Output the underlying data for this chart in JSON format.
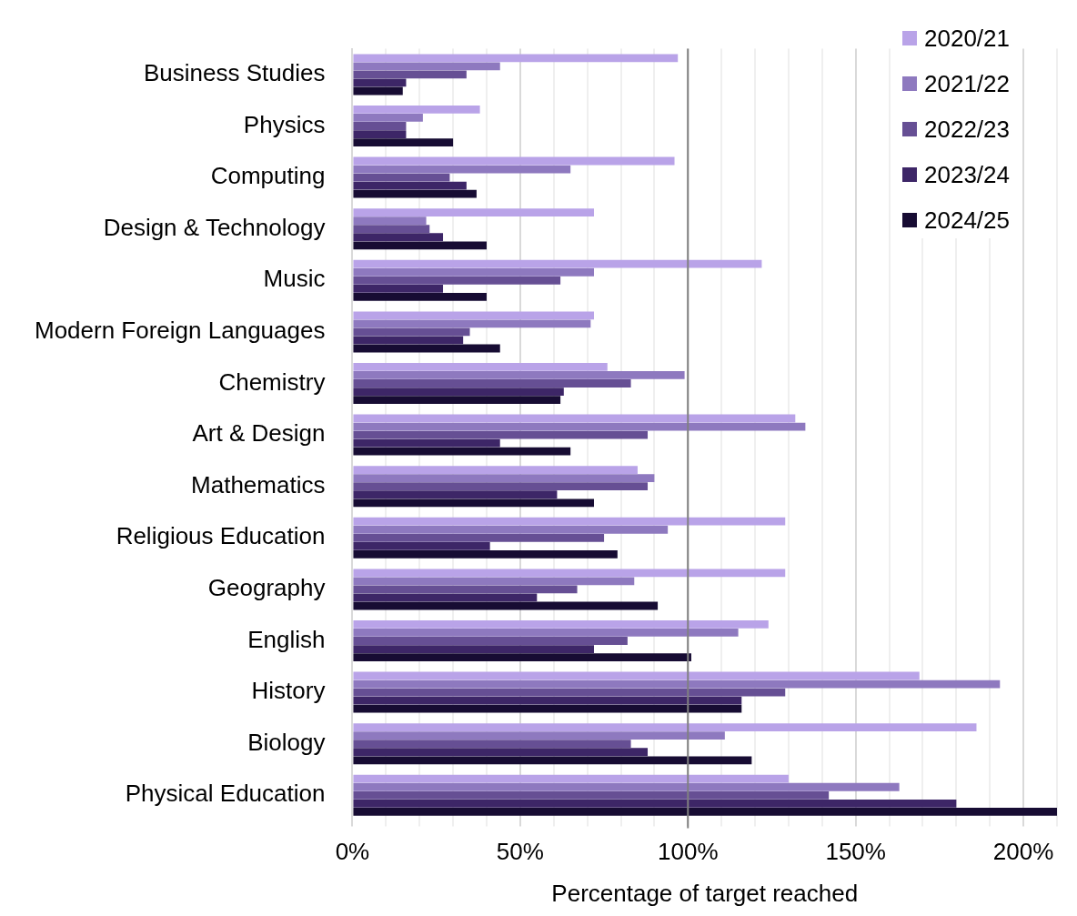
{
  "chart_data": {
    "type": "bar",
    "orientation": "horizontal",
    "xlabel": "Percentage of target reached",
    "categories": [
      "Business Studies",
      "Physics",
      "Computing",
      "Design & Technology",
      "Music",
      "Modern Foreign Languages",
      "Chemistry",
      "Art & Design",
      "Mathematics",
      "Religious Education",
      "Geography",
      "English",
      "History",
      "Biology",
      "Physical Education"
    ],
    "series": [
      {
        "name": "2020/21",
        "color": "#b9a3e8",
        "values": [
          97,
          38,
          96,
          72,
          122,
          72,
          76,
          132,
          85,
          129,
          129,
          124,
          169,
          186,
          130
        ]
      },
      {
        "name": "2021/22",
        "color": "#8e79bf",
        "values": [
          44,
          21,
          65,
          22,
          72,
          71,
          99,
          135,
          90,
          94,
          84,
          115,
          193,
          111,
          163
        ]
      },
      {
        "name": "2022/23",
        "color": "#664f94",
        "values": [
          34,
          16,
          29,
          23,
          62,
          35,
          83,
          88,
          88,
          75,
          67,
          82,
          129,
          83,
          142
        ]
      },
      {
        "name": "2023/24",
        "color": "#3d2667",
        "values": [
          16,
          16,
          34,
          27,
          27,
          33,
          63,
          44,
          61,
          41,
          55,
          72,
          116,
          88,
          180
        ]
      },
      {
        "name": "2024/25",
        "color": "#170c33",
        "values": [
          15,
          30,
          37,
          40,
          40,
          44,
          62,
          65,
          72,
          79,
          91,
          101,
          116,
          119,
          210
        ]
      }
    ],
    "xlim": [
      0,
      210
    ],
    "xticks": [
      {
        "value": 0,
        "label": "0%"
      },
      {
        "value": 10,
        "label": null
      },
      {
        "value": 20,
        "label": null
      },
      {
        "value": 30,
        "label": null
      },
      {
        "value": 40,
        "label": null
      },
      {
        "value": 50,
        "label": "50%"
      },
      {
        "value": 60,
        "label": null
      },
      {
        "value": 70,
        "label": null
      },
      {
        "value": 80,
        "label": null
      },
      {
        "value": 90,
        "label": null
      },
      {
        "value": 100,
        "label": "100%"
      },
      {
        "value": 110,
        "label": null
      },
      {
        "value": 120,
        "label": null
      },
      {
        "value": 130,
        "label": null
      },
      {
        "value": 140,
        "label": null
      },
      {
        "value": 150,
        "label": "150%"
      },
      {
        "value": 160,
        "label": null
      },
      {
        "value": 170,
        "label": null
      },
      {
        "value": 180,
        "label": null
      },
      {
        "value": 190,
        "label": null
      },
      {
        "value": 200,
        "label": "200%"
      },
      {
        "value": 210,
        "label": null
      }
    ],
    "grid": "x",
    "legend": "top right",
    "ref_lines": [
      {
        "axis": "x",
        "value": 100,
        "color": "#808080"
      }
    ]
  }
}
